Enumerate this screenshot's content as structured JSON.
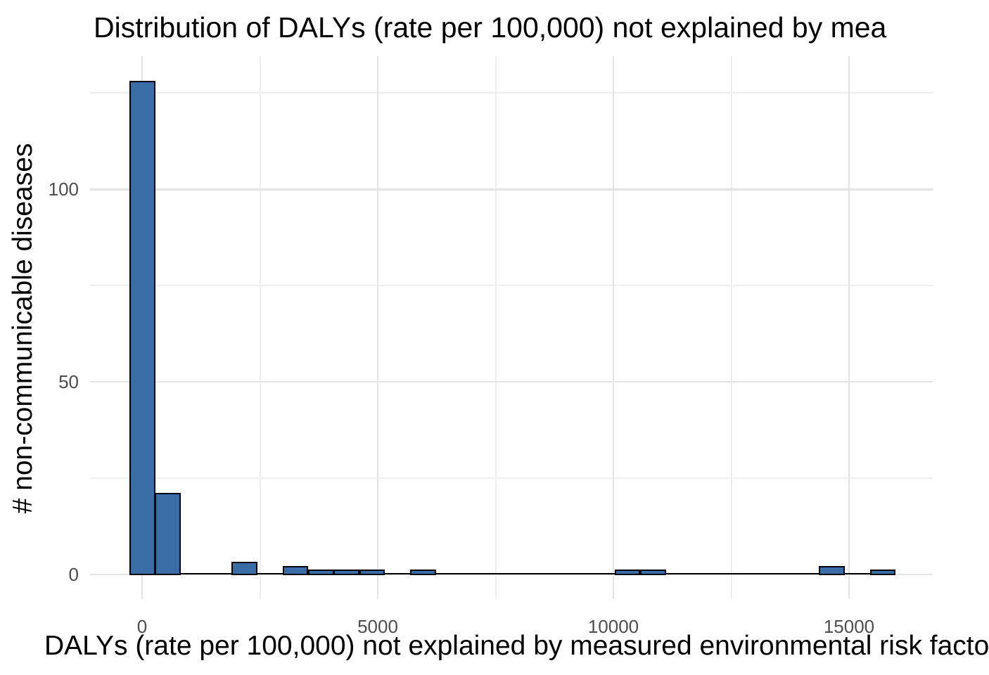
{
  "chart_data": {
    "type": "bar",
    "subtype": "histogram",
    "title": "Distribution of DALYs (rate per 100,000) not explained by mea",
    "xlabel": "DALYs (rate per 100,000) not explained by measured environmental risk facto",
    "ylabel": "# non-communicable diseases",
    "x_ticks": [
      0,
      5000,
      10000,
      15000
    ],
    "x_minor_gridlines": [
      2500,
      7500,
      12500
    ],
    "y_ticks": [
      0,
      50,
      100
    ],
    "y_minor_gridlines": [
      25,
      75,
      125
    ],
    "xlim": [
      -1100,
      16780
    ],
    "ylim": [
      -6.5,
      134.5
    ],
    "bin_start": -270.9,
    "bin_width": 541.8,
    "bin_counts": [
      128,
      21,
      0,
      0,
      3,
      0,
      2,
      1,
      1,
      1,
      0,
      1,
      0,
      0,
      0,
      0,
      0,
      0,
      0,
      1,
      1,
      0,
      0,
      0,
      0,
      0,
      0,
      2,
      0,
      1
    ],
    "grid": true,
    "legend": false,
    "colors": {
      "bar_fill": "#3a6ca6",
      "bar_stroke": "#000000",
      "grid_major": "#e3e3e3",
      "grid_minor": "#eeeeee",
      "axis_text": "#4d4d4d",
      "title_text": "#000000",
      "background": "#ffffff"
    }
  }
}
